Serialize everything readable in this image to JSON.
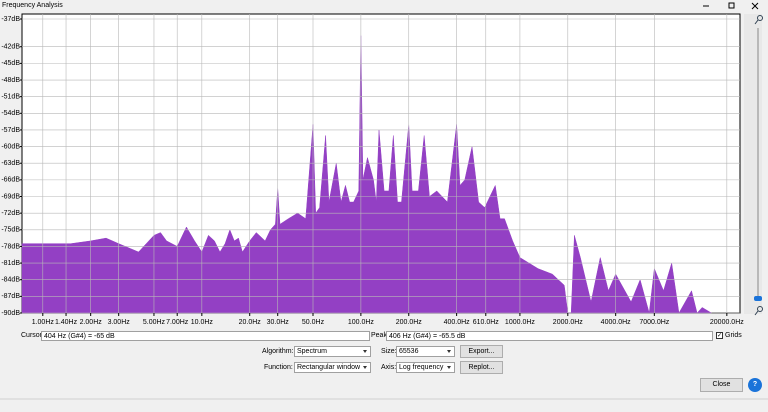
{
  "window": {
    "title": "Frequency Analysis"
  },
  "chart_data": {
    "type": "area",
    "x": [
      0.74,
      1,
      1.5,
      2,
      2.5,
      3,
      4,
      5,
      5.5,
      6,
      7,
      8,
      9,
      10,
      11,
      12,
      13,
      14,
      15,
      16,
      17,
      18,
      20,
      22,
      25,
      27,
      29,
      30,
      31,
      35,
      40,
      45,
      50,
      52,
      55,
      60,
      63,
      70,
      75,
      80,
      85,
      90,
      97,
      100,
      103,
      110,
      120,
      125,
      130,
      140,
      150,
      160,
      170,
      180,
      200,
      210,
      230,
      250,
      270,
      300,
      350,
      400,
      420,
      450,
      500,
      550,
      600,
      700,
      750,
      800,
      900,
      1000,
      1300,
      1600,
      1900,
      2000,
      2100,
      2200,
      2400,
      2800,
      3200,
      3600,
      4000,
      5000,
      5700,
      6500,
      7000,
      8000,
      9000,
      10000,
      12000,
      13000,
      14000,
      16000
    ],
    "values": [
      -77.5,
      -77.5,
      -77.5,
      -77,
      -76.5,
      -77.5,
      -79,
      -76,
      -75.5,
      -77,
      -78,
      -74.5,
      -77,
      -79,
      -76,
      -77,
      -79,
      -77.5,
      -75,
      -77,
      -76.5,
      -79,
      -77,
      -75.5,
      -77,
      -75,
      -74,
      -67.5,
      -74,
      -73,
      -72,
      -73,
      -56,
      -72,
      -71,
      -58,
      -70,
      -63,
      -70,
      -67,
      -70,
      -70,
      -68,
      -40,
      -66,
      -62,
      -66,
      -70,
      -57,
      -68,
      -68,
      -58,
      -70,
      -70,
      -56,
      -68,
      -68,
      -58,
      -69,
      -68,
      -70,
      -56,
      -67,
      -66,
      -60,
      -70,
      -71,
      -67,
      -73,
      -73,
      -77,
      -80,
      -82,
      -83,
      -85,
      -90,
      -90,
      -76,
      -80,
      -88,
      -80,
      -86,
      -83,
      -88,
      -84,
      -90,
      -82,
      -86,
      -81,
      -90,
      -86,
      -90,
      -89,
      -90
    ],
    "color": "#9340c4",
    "log_x": true,
    "grid": true,
    "xlim": [
      0.74,
      24200
    ],
    "ylim": [
      -90,
      -36.1
    ],
    "xticks": [
      {
        "value": 1,
        "label": "1.00Hz"
      },
      {
        "value": 1.4,
        "label": "1.40Hz"
      },
      {
        "value": 2,
        "label": "2.00Hz"
      },
      {
        "value": 3,
        "label": "3.00Hz"
      },
      {
        "value": 5,
        "label": "5.00Hz"
      },
      {
        "value": 7,
        "label": "7.00Hz"
      },
      {
        "value": 10,
        "label": "10.0Hz"
      },
      {
        "value": 20,
        "label": "20.0Hz"
      },
      {
        "value": 30,
        "label": "30.0Hz"
      },
      {
        "value": 50,
        "label": "50.0Hz"
      },
      {
        "value": 100,
        "label": "100.0Hz"
      },
      {
        "value": 200,
        "label": "200.0Hz"
      },
      {
        "value": 400,
        "label": "400.0Hz"
      },
      {
        "value": 610,
        "label": "610.0Hz"
      },
      {
        "value": 1000,
        "label": "1000.0Hz"
      },
      {
        "value": 2000,
        "label": "2000.0Hz"
      },
      {
        "value": 4000,
        "label": "4000.0Hz"
      },
      {
        "value": 7000,
        "label": "7000.0Hz"
      },
      {
        "value": 20000,
        "label": "20000.0Hz"
      }
    ],
    "yticks": [
      {
        "value": -37,
        "label": "-37dB"
      },
      {
        "value": -42,
        "label": "-42dB"
      },
      {
        "value": -45,
        "label": "-45dB"
      },
      {
        "value": -48,
        "label": "-48dB"
      },
      {
        "value": -51,
        "label": "-51dB"
      },
      {
        "value": -54,
        "label": "-54dB"
      },
      {
        "value": -57,
        "label": "-57dB"
      },
      {
        "value": -60,
        "label": "-60dB"
      },
      {
        "value": -63,
        "label": "-63dB"
      },
      {
        "value": -66,
        "label": "-66dB"
      },
      {
        "value": -69,
        "label": "-69dB"
      },
      {
        "value": -72,
        "label": "-72dB"
      },
      {
        "value": -75,
        "label": "-75dB"
      },
      {
        "value": -78,
        "label": "-78dB"
      },
      {
        "value": -81,
        "label": "-81dB"
      },
      {
        "value": -84,
        "label": "-84dB"
      },
      {
        "value": -87,
        "label": "-87dB"
      },
      {
        "value": -90,
        "label": "-90dB"
      }
    ]
  },
  "controls": {
    "cursor_label": "Cursor:",
    "cursor_value": "404 Hz (G#4) = -65 dB",
    "peak_label": "Peak:",
    "peak_value": "406 Hz (G#4) = -65.5 dB",
    "grids_label": "Grids",
    "algorithm_label": "Algorithm:",
    "algorithm_value": "Spectrum",
    "size_label": "Size:",
    "size_value": "65536",
    "export_button": "Export...",
    "function_label": "Function:",
    "function_value": "Rectangular window",
    "axis_label": "Axis:",
    "axis_value": "Log frequency",
    "replot_button": "Replot...",
    "close_button": "Close"
  }
}
